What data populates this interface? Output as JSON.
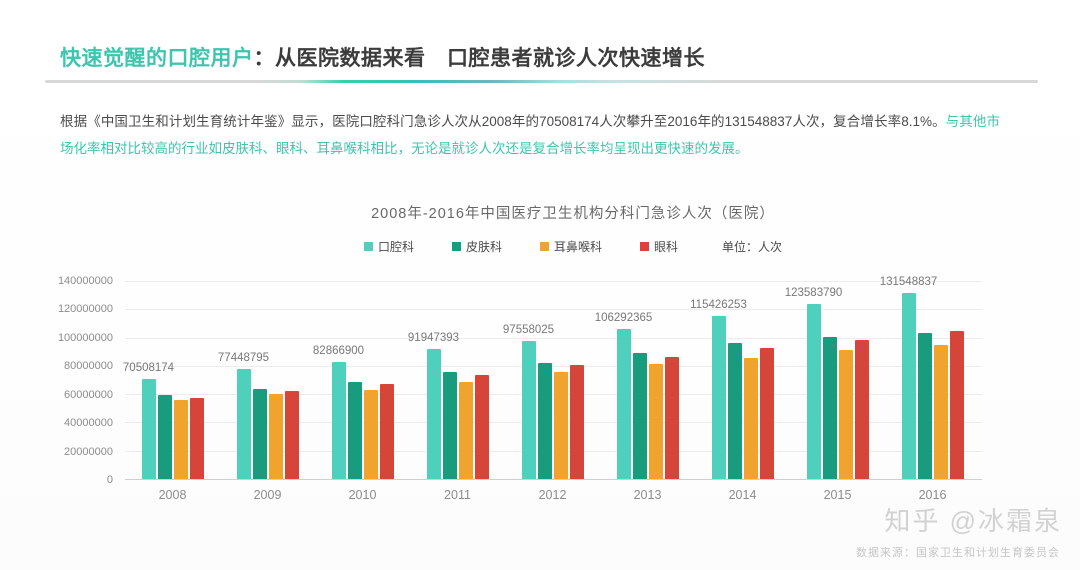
{
  "header": {
    "title_highlight": "快速觉醒的口腔用户",
    "title_rest": "：从医院数据来看　口腔患者就诊人次快速增长"
  },
  "intro": {
    "part1": "根据《中国卫生和计划生育统计年鉴》显示，医院口腔科门急诊人次从2008年的70508174人次攀升至2016年的131548837人次，复合增长率8.1%。",
    "part2": "与其他市场化率相对比较高的行业如皮肤科、眼科、耳鼻喉科相比，无论是就诊人次还是复合增长率均呈现出更快速的发展。"
  },
  "chart_data": {
    "type": "bar",
    "title": "2008年-2016年中国医疗卫生机构分科门急诊人次（医院）",
    "unit_label": "单位：人次",
    "xlabel": "",
    "ylabel": "人次",
    "categories": [
      "2008",
      "2009",
      "2010",
      "2011",
      "2012",
      "2013",
      "2014",
      "2015",
      "2016"
    ],
    "series": [
      {
        "name": "口腔科",
        "color": "#4fd0bd",
        "data_labels": true,
        "values": [
          70508174,
          77448795,
          82866900,
          91947393,
          97558025,
          106292365,
          115426253,
          123583790,
          131548837
        ]
      },
      {
        "name": "皮肤科",
        "color": "#189c7d",
        "data_labels": false,
        "values": [
          59400000,
          63600000,
          68600000,
          75600000,
          82000000,
          89000000,
          96000000,
          100500000,
          103500000
        ]
      },
      {
        "name": "耳鼻喉科",
        "color": "#f0a42e",
        "data_labels": false,
        "values": [
          56000000,
          60000000,
          63000000,
          68600000,
          75600000,
          81500000,
          85500000,
          91000000,
          95000000
        ]
      },
      {
        "name": "眼科",
        "color": "#d6453a",
        "data_labels": false,
        "values": [
          57500000,
          62000000,
          67000000,
          73500000,
          80500000,
          86500000,
          92500000,
          98000000,
          104500000
        ]
      }
    ],
    "ylim": [
      0,
      140000000
    ],
    "y_ticks": [
      140000000,
      120000000,
      100000000,
      80000000,
      60000000,
      40000000,
      20000000,
      0
    ],
    "grid": true,
    "legend_position": "top"
  },
  "footer": {
    "watermark": "知乎 @冰霜泉",
    "source": "数据来源：国家卫生和计划生育委员会"
  },
  "colors": {
    "accent_teal": "#3fc4ae",
    "title_dark": "#3c3c3c",
    "bar_dental": "#4fd0bd",
    "bar_dermatology": "#189c7d",
    "bar_ent": "#f0a42e",
    "bar_ophthalmology": "#d6453a"
  }
}
